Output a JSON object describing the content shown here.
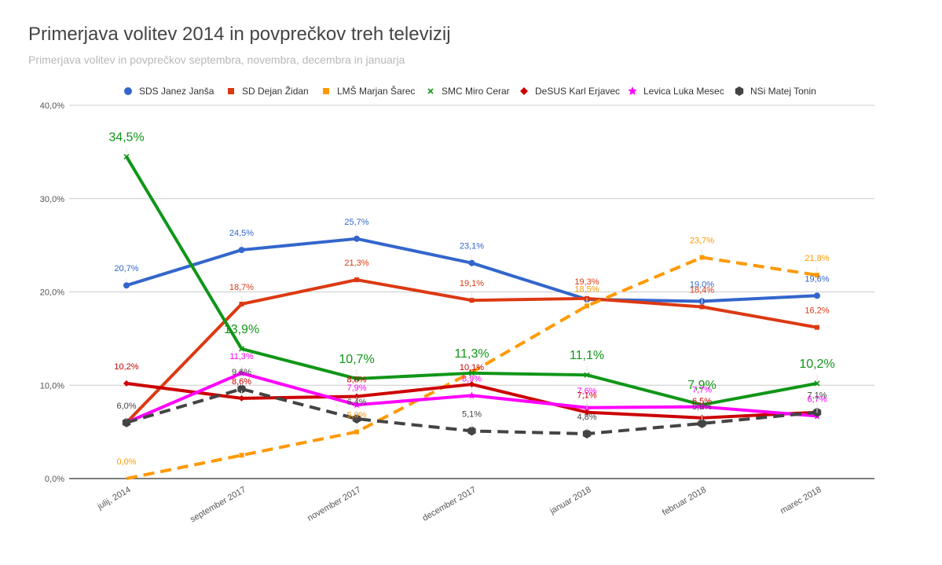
{
  "chart_data": {
    "type": "line",
    "title": "Primerjava volitev 2014 in povprečkov treh televizij",
    "subtitle": "Primerjava volitev in povprečkov septembra, novembra, decembra in januarja",
    "xlabel": "",
    "ylabel": "",
    "ylim": [
      0,
      40
    ],
    "yticks": [
      0,
      10,
      20,
      30,
      40
    ],
    "ytick_labels": [
      "0,0%",
      "10,0%",
      "20,0%",
      "30,0%",
      "40,0%"
    ],
    "grid": true,
    "legend_position": "top",
    "categories": [
      "julij, 2014",
      "september 2017",
      "november 2017",
      "december 2017",
      "januar 2018",
      "februar 2018",
      "marec 2018"
    ],
    "series": [
      {
        "name": "SDS Janez Janša",
        "color": "#3366cc",
        "marker": "circle",
        "dashed": false,
        "big_labels": false,
        "values": [
          20.7,
          24.5,
          25.7,
          23.1,
          19.2,
          19.0,
          19.6
        ],
        "labels": [
          "20,7%",
          "24,5%",
          "25,7%",
          "23,1%",
          "",
          "19,0%",
          "19,6%"
        ]
      },
      {
        "name": "SD Dejan Židan",
        "color": "#dc3912",
        "marker": "square",
        "dashed": false,
        "big_labels": false,
        "values": [
          6.0,
          18.7,
          21.3,
          19.1,
          19.3,
          18.4,
          16.2
        ],
        "labels": [
          "",
          "18,7%",
          "21,3%",
          "19,1%",
          "19,3%",
          "18,4%",
          "16,2%"
        ]
      },
      {
        "name": "LMŠ Marjan Šarec",
        "color": "#ff9900",
        "marker": "square",
        "dashed": true,
        "big_labels": false,
        "values": [
          0.0,
          2.5,
          5.0,
          11.4,
          18.5,
          23.7,
          21.8
        ],
        "labels": [
          "0,0%",
          "",
          "5,0%",
          "",
          "18,5%",
          "23,7%",
          "21,8%"
        ]
      },
      {
        "name": "SMC Miro Cerar",
        "color": "#109618",
        "marker": "x",
        "dashed": false,
        "big_labels": true,
        "values": [
          34.5,
          13.9,
          10.7,
          11.3,
          11.1,
          7.9,
          10.2
        ],
        "labels": [
          "34,5%",
          "13,9%",
          "10,7%",
          "11,3%",
          "11,1%",
          "7,9%",
          "10,2%"
        ]
      },
      {
        "name": "DeSUS Karl Erjavec",
        "color": "#cc0000",
        "marker": "diamond",
        "dashed": false,
        "big_labels": false,
        "values": [
          10.2,
          8.6,
          8.8,
          10.1,
          7.1,
          6.5,
          7.1
        ],
        "labels": [
          "10,2%",
          "8,6%",
          "8,8%",
          "10,1%",
          "7,1%",
          "6,5%",
          ""
        ]
      },
      {
        "name": "Levica Luka Mesec",
        "color": "#ff00ff",
        "marker": "star",
        "dashed": false,
        "big_labels": false,
        "values": [
          6.0,
          11.3,
          7.9,
          8.9,
          7.6,
          7.7,
          6.7
        ],
        "labels": [
          "",
          "11,3%",
          "7,9%",
          "8,9%",
          "7,6%",
          "7,7%",
          "6,7%"
        ]
      },
      {
        "name": "NSi Matej Tonin",
        "color": "#444444",
        "marker": "hexagon",
        "dashed": true,
        "big_labels": false,
        "values": [
          6.0,
          9.6,
          6.4,
          5.1,
          4.8,
          5.9,
          7.1
        ],
        "labels": [
          "6,0%",
          "9,6%",
          "6,4%",
          "5,1%",
          "4,8%",
          "5,9%",
          "7,1%"
        ]
      }
    ]
  }
}
